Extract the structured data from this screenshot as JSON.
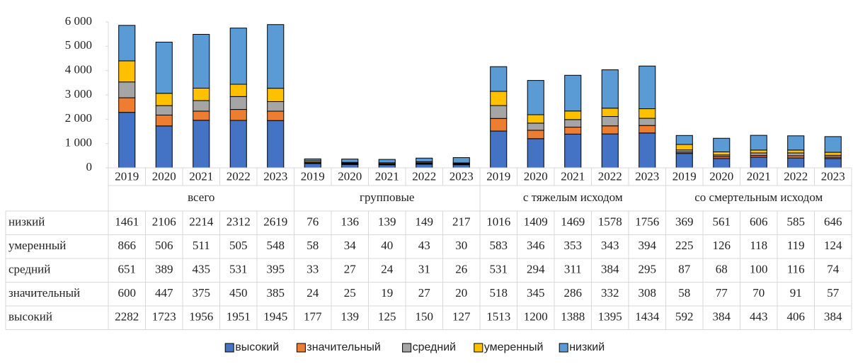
{
  "chart_data": {
    "type": "stacked_bar",
    "categories": [
      "2019",
      "2020",
      "2021",
      "2022",
      "2023",
      "2019",
      "2020",
      "2021",
      "2022",
      "2023",
      "2019",
      "2020",
      "2021",
      "2022",
      "2023",
      "2019",
      "2020",
      "2021",
      "2022",
      "2023"
    ],
    "groups": [
      "всего",
      "групповые",
      "с тяжелым исходом",
      "со смертельным исходом"
    ],
    "ylim": [
      0,
      6000
    ],
    "yticks": [
      0,
      {
        "value": 1000,
        "label": "1 000"
      },
      {
        "value": 2000,
        "label": "2 000"
      },
      {
        "value": 3000,
        "label": "3 000"
      },
      {
        "value": 4000,
        "label": "4 000"
      },
      {
        "value": 5000,
        "label": "5 000"
      },
      {
        "value": 6000,
        "label": "6 000"
      }
    ],
    "grid": false,
    "legend": "bottom",
    "series": [
      {
        "name": "высокий",
        "color": "#4472c4",
        "values": [
          2282,
          1723,
          1956,
          1951,
          1945,
          177,
          139,
          125,
          150,
          127,
          1513,
          1200,
          1388,
          1395,
          1434,
          592,
          384,
          443,
          406,
          384
        ]
      },
      {
        "name": "значительный",
        "color": "#ed7d31",
        "values": [
          600,
          447,
          375,
          450,
          385,
          24,
          25,
          19,
          27,
          20,
          518,
          345,
          286,
          332,
          308,
          58,
          77,
          70,
          91,
          57
        ]
      },
      {
        "name": "средний",
        "color": "#a5a5a5",
        "values": [
          651,
          389,
          435,
          531,
          395,
          33,
          27,
          24,
          31,
          26,
          531,
          294,
          311,
          384,
          295,
          87,
          68,
          100,
          116,
          74
        ]
      },
      {
        "name": "умеренный",
        "color": "#ffc000",
        "values": [
          866,
          506,
          511,
          505,
          548,
          58,
          34,
          40,
          43,
          30,
          583,
          346,
          353,
          343,
          394,
          225,
          126,
          118,
          119,
          124
        ]
      },
      {
        "name": "низкий",
        "color": "#5b9bd5",
        "values": [
          1461,
          2106,
          2214,
          2312,
          2619,
          76,
          136,
          139,
          149,
          217,
          1016,
          1409,
          1469,
          1578,
          1756,
          369,
          561,
          606,
          585,
          646
        ]
      }
    ]
  }
}
